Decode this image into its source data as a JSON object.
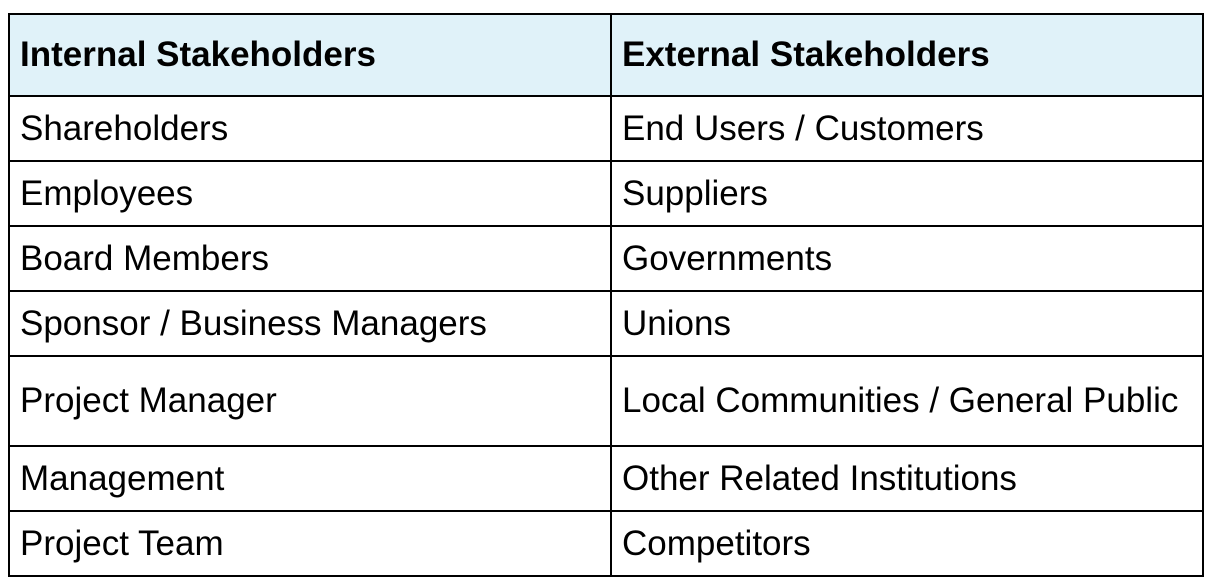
{
  "table": {
    "headers": [
      "Internal Stakeholders",
      "External Stakeholders"
    ],
    "rows": [
      [
        "Shareholders",
        "End Users / Customers"
      ],
      [
        "Employees",
        "Suppliers"
      ],
      [
        "Board Members",
        "Governments"
      ],
      [
        "Sponsor / Business Managers",
        "Unions"
      ],
      [
        "Project Manager",
        "Local Communities / General Public"
      ],
      [
        "Management",
        "Other Related Institutions"
      ],
      [
        "Project Team",
        "Competitors"
      ]
    ]
  },
  "colors": {
    "header_background": "#e0f2f9",
    "border": "#000000",
    "text": "#000000"
  }
}
